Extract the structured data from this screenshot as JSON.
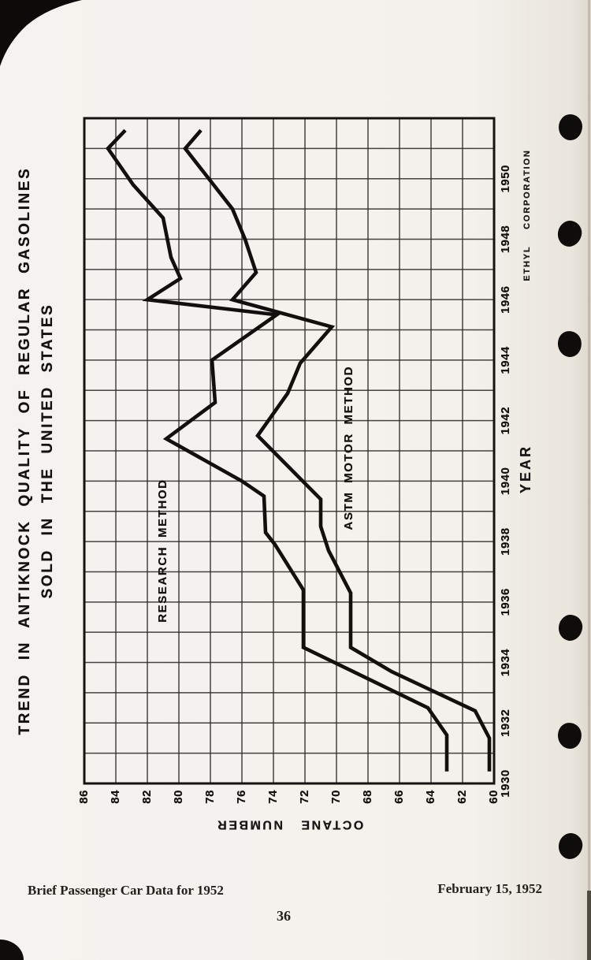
{
  "page": {
    "footer_left": "Brief Passenger Car Data for 1952",
    "footer_right": "February 15, 1952",
    "page_number": "36"
  },
  "colors": {
    "ink": "#14120e",
    "paper": "#f3f1ec"
  },
  "chart_data": {
    "type": "line",
    "title_line1": "TREND IN ANTIKNOCK QUALITY OF REGULAR GASOLINES",
    "title_line2": "SOLD IN THE UNITED STATES",
    "xlabel": "YEAR",
    "ylabel": "OCTANE NUMBER",
    "credit": "ETHYL CORPORATION",
    "orientation": "chart is printed rotated 90° counter-clockwise on the page",
    "grid": true,
    "x_range": [
      1930,
      1952
    ],
    "y_range": [
      60,
      86
    ],
    "x_grid_step": 1,
    "y_grid_step": 2,
    "x_ticks": [
      1930,
      1932,
      1934,
      1936,
      1938,
      1940,
      1942,
      1944,
      1946,
      1948,
      1950
    ],
    "y_ticks": [
      60,
      62,
      64,
      66,
      68,
      70,
      72,
      74,
      76,
      78,
      80,
      82,
      84,
      86
    ],
    "series": [
      {
        "name": "RESEARCH METHOD",
        "points": [
          [
            1930.4,
            63.0
          ],
          [
            1931.6,
            63.0
          ],
          [
            1932.5,
            64.2
          ],
          [
            1934.5,
            72.1
          ],
          [
            1936.4,
            72.1
          ],
          [
            1937.9,
            73.9
          ],
          [
            1938.3,
            74.5
          ],
          [
            1939.5,
            74.6
          ],
          [
            1940.0,
            76.0
          ],
          [
            1941.4,
            80.8
          ],
          [
            1942.6,
            77.7
          ],
          [
            1944.0,
            77.9
          ],
          [
            1945.5,
            73.8
          ],
          [
            1946.0,
            82.0
          ],
          [
            1946.7,
            79.9
          ],
          [
            1947.4,
            80.5
          ],
          [
            1948.7,
            81.0
          ],
          [
            1949.8,
            82.9
          ],
          [
            1951.0,
            84.5
          ],
          [
            1951.6,
            83.4
          ]
        ]
      },
      {
        "name": "ASTM MOTOR METHOD",
        "points": [
          [
            1930.4,
            60.3
          ],
          [
            1931.5,
            60.3
          ],
          [
            1932.4,
            61.2
          ],
          [
            1933.7,
            66.5
          ],
          [
            1934.5,
            69.1
          ],
          [
            1936.3,
            69.1
          ],
          [
            1937.7,
            70.5
          ],
          [
            1938.5,
            71.0
          ],
          [
            1939.4,
            71.0
          ],
          [
            1941.5,
            75.0
          ],
          [
            1942.9,
            73.1
          ],
          [
            1943.9,
            72.3
          ],
          [
            1945.1,
            70.3
          ],
          [
            1946.0,
            76.6
          ],
          [
            1946.9,
            75.1
          ],
          [
            1948.0,
            75.8
          ],
          [
            1949.0,
            76.6
          ],
          [
            1951.0,
            79.6
          ],
          [
            1951.6,
            78.6
          ]
        ]
      }
    ],
    "series_labels": [
      {
        "text": "RESEARCH METHOD",
        "year": 1937.7,
        "octane": 81.0
      },
      {
        "text": "ASTM MOTOR METHOD",
        "year": 1941.1,
        "octane": 69.2
      }
    ]
  }
}
